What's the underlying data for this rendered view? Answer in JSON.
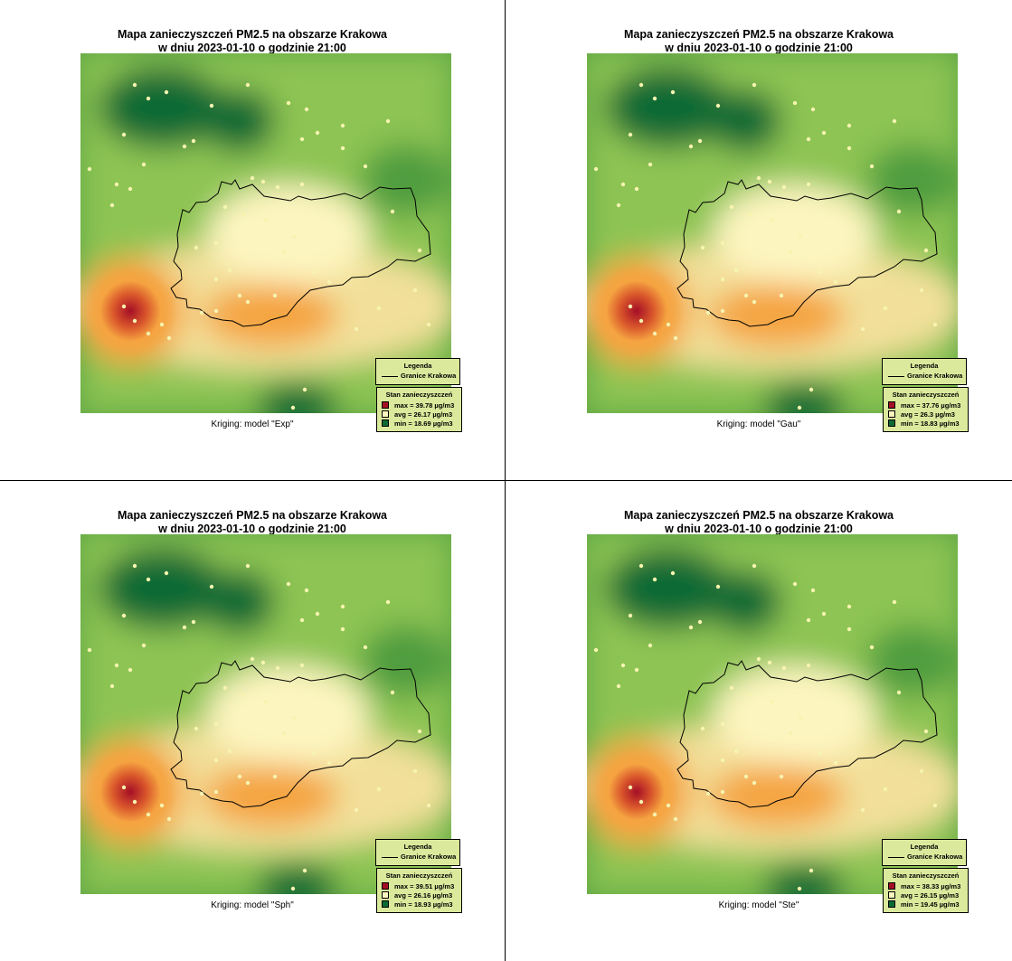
{
  "colors": {
    "high": "#a50f26",
    "mid_high": "#f5a441",
    "mid": "#fdf5c0",
    "mid_low": "#8dc453",
    "low": "#0b6b34",
    "legend_bg": "#dbe99c"
  },
  "legend": {
    "boundary_title": "Legenda",
    "boundary_label": "Granice Krakowa",
    "status_title": "Stan zanieczyszczeń"
  },
  "panels": [
    {
      "title_line1": "Mapa zanieczyszczeń PM2.5 na obszarze Krakowa",
      "title_line2": "w dniu 2023-01-10 o godzinie 21:00",
      "caption": "Kriging: model \"Exp\"",
      "max_text": "max =  39.78 µg/m3",
      "avg_text": "avg =  26.17 µg/m3",
      "min_text": "min =  18.69 µg/m3",
      "hotspot_level": 1.0
    },
    {
      "title_line1": "Mapa zanieczyszczeń PM2.5 na obszarze Krakowa",
      "title_line2": "w dniu 2023-01-10 o godzinie 21:00",
      "caption": "Kriging: model \"Gau\"",
      "max_text": "max =  37.76 µg/m3",
      "avg_text": "avg =  26.3 µg/m3",
      "min_text": "min =  18.83 µg/m3",
      "hotspot_level": 1.0
    },
    {
      "title_line1": "Mapa zanieczyszczeń PM2.5 na obszarze Krakowa",
      "title_line2": "w dniu 2023-01-10 o godzinie 21:00",
      "caption": "Kriging: model \"Sph\"",
      "max_text": "max =  39.51 µg/m3",
      "avg_text": "avg =  26.16 µg/m3",
      "min_text": "min =  18.93 µg/m3",
      "hotspot_level": 1.0
    },
    {
      "title_line1": "Mapa zanieczyszczeń PM2.5 na obszarze Krakowa",
      "title_line2": "w dniu 2023-01-10 o godzinie 21:00",
      "caption": "Kriging: model \"Ste\"",
      "max_text": "max =  38.33 µg/m3",
      "avg_text": "avg =  26.15 µg/m3",
      "min_text": "min =  19.45 µg/m3",
      "hotspot_level": 0.92
    }
  ]
}
